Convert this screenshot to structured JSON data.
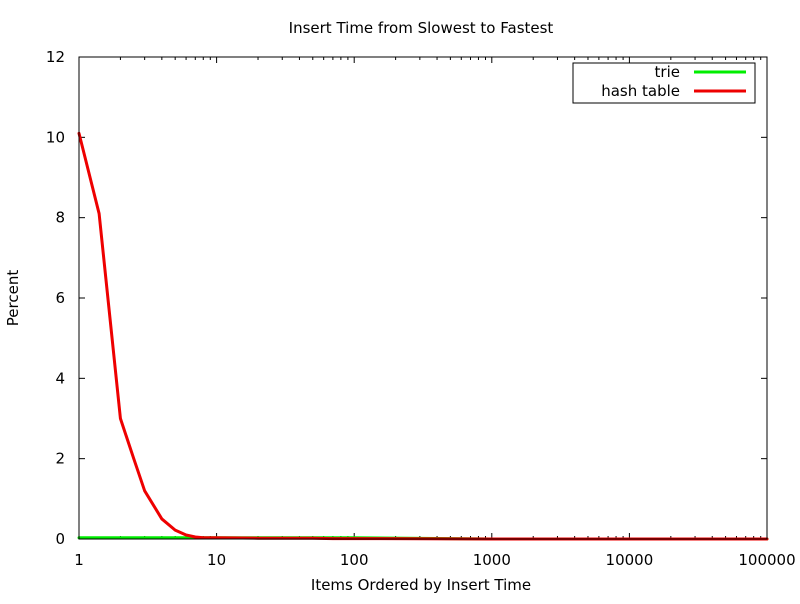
{
  "chart_data": {
    "type": "line",
    "title": "Insert Time from Slowest to Fastest",
    "xlabel": "Items Ordered by Insert Time",
    "ylabel": "Percent",
    "x_scale": "log",
    "xlim": [
      1,
      100000
    ],
    "ylim": [
      0,
      12
    ],
    "x_ticks": [
      1,
      10,
      100,
      1000,
      10000,
      100000
    ],
    "x_tick_labels": [
      "1",
      "10",
      "100",
      "1000",
      "10000",
      "100000"
    ],
    "y_ticks": [
      0,
      2,
      4,
      6,
      8,
      10,
      12
    ],
    "y_tick_labels": [
      "0",
      "2",
      "4",
      "6",
      "8",
      "10",
      "12"
    ],
    "grid": false,
    "legend_position": "top-right",
    "series": [
      {
        "name": "trie",
        "color": "#00ee00",
        "x": [
          1,
          2,
          5,
          10,
          100,
          1000,
          10000,
          100000
        ],
        "y": [
          0.03,
          0.03,
          0.03,
          0.03,
          0.03,
          0.0,
          0.0,
          0.0
        ]
      },
      {
        "name": "hash table",
        "color": "#ee0000",
        "x": [
          1,
          1.4,
          2,
          2.5,
          3,
          4,
          5,
          6,
          7,
          8,
          10,
          20,
          50,
          70,
          100,
          1000,
          10000,
          100000
        ],
        "y": [
          10.1,
          8.1,
          3.0,
          2.0,
          1.2,
          0.5,
          0.22,
          0.1,
          0.05,
          0.03,
          0.03,
          0.02,
          0.02,
          0.01,
          0.01,
          0.0,
          0.0,
          0.0
        ]
      }
    ]
  }
}
